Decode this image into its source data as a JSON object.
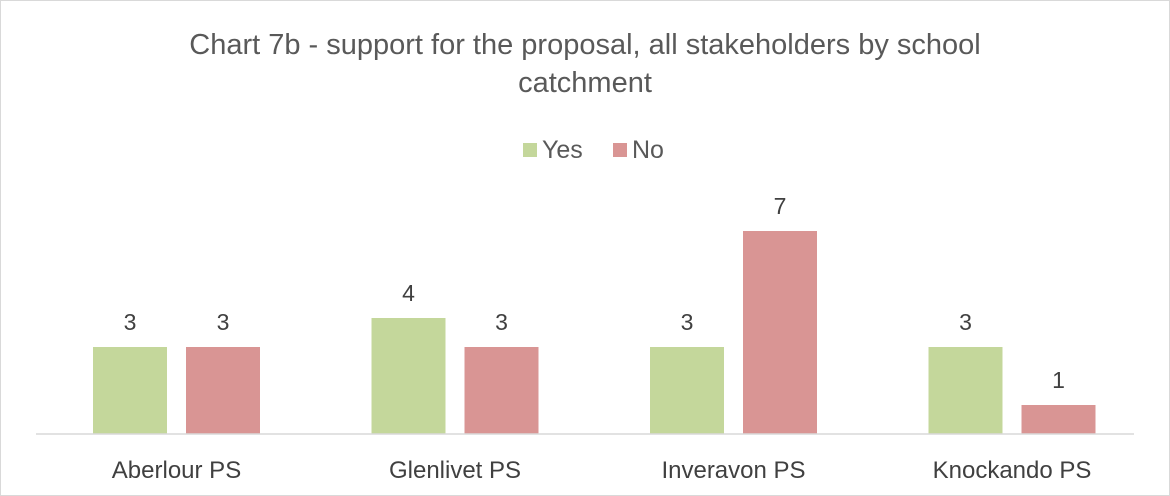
{
  "chart_data": {
    "type": "bar",
    "title_lines": [
      "Chart 7b - support for the proposal, all stakeholders by school",
      "catchment"
    ],
    "categories": [
      "Aberlour PS",
      "Glenlivet PS",
      "Inveravon PS",
      "Knockando PS"
    ],
    "series": [
      {
        "name": "Yes",
        "color": "#c4d79b",
        "values": [
          3,
          4,
          3,
          3
        ]
      },
      {
        "name": "No",
        "color": "#d99594",
        "values": [
          3,
          3,
          7,
          1
        ]
      }
    ],
    "ylim": [
      0,
      7
    ],
    "legend_position": "top",
    "grid": false,
    "data_labels": true
  }
}
